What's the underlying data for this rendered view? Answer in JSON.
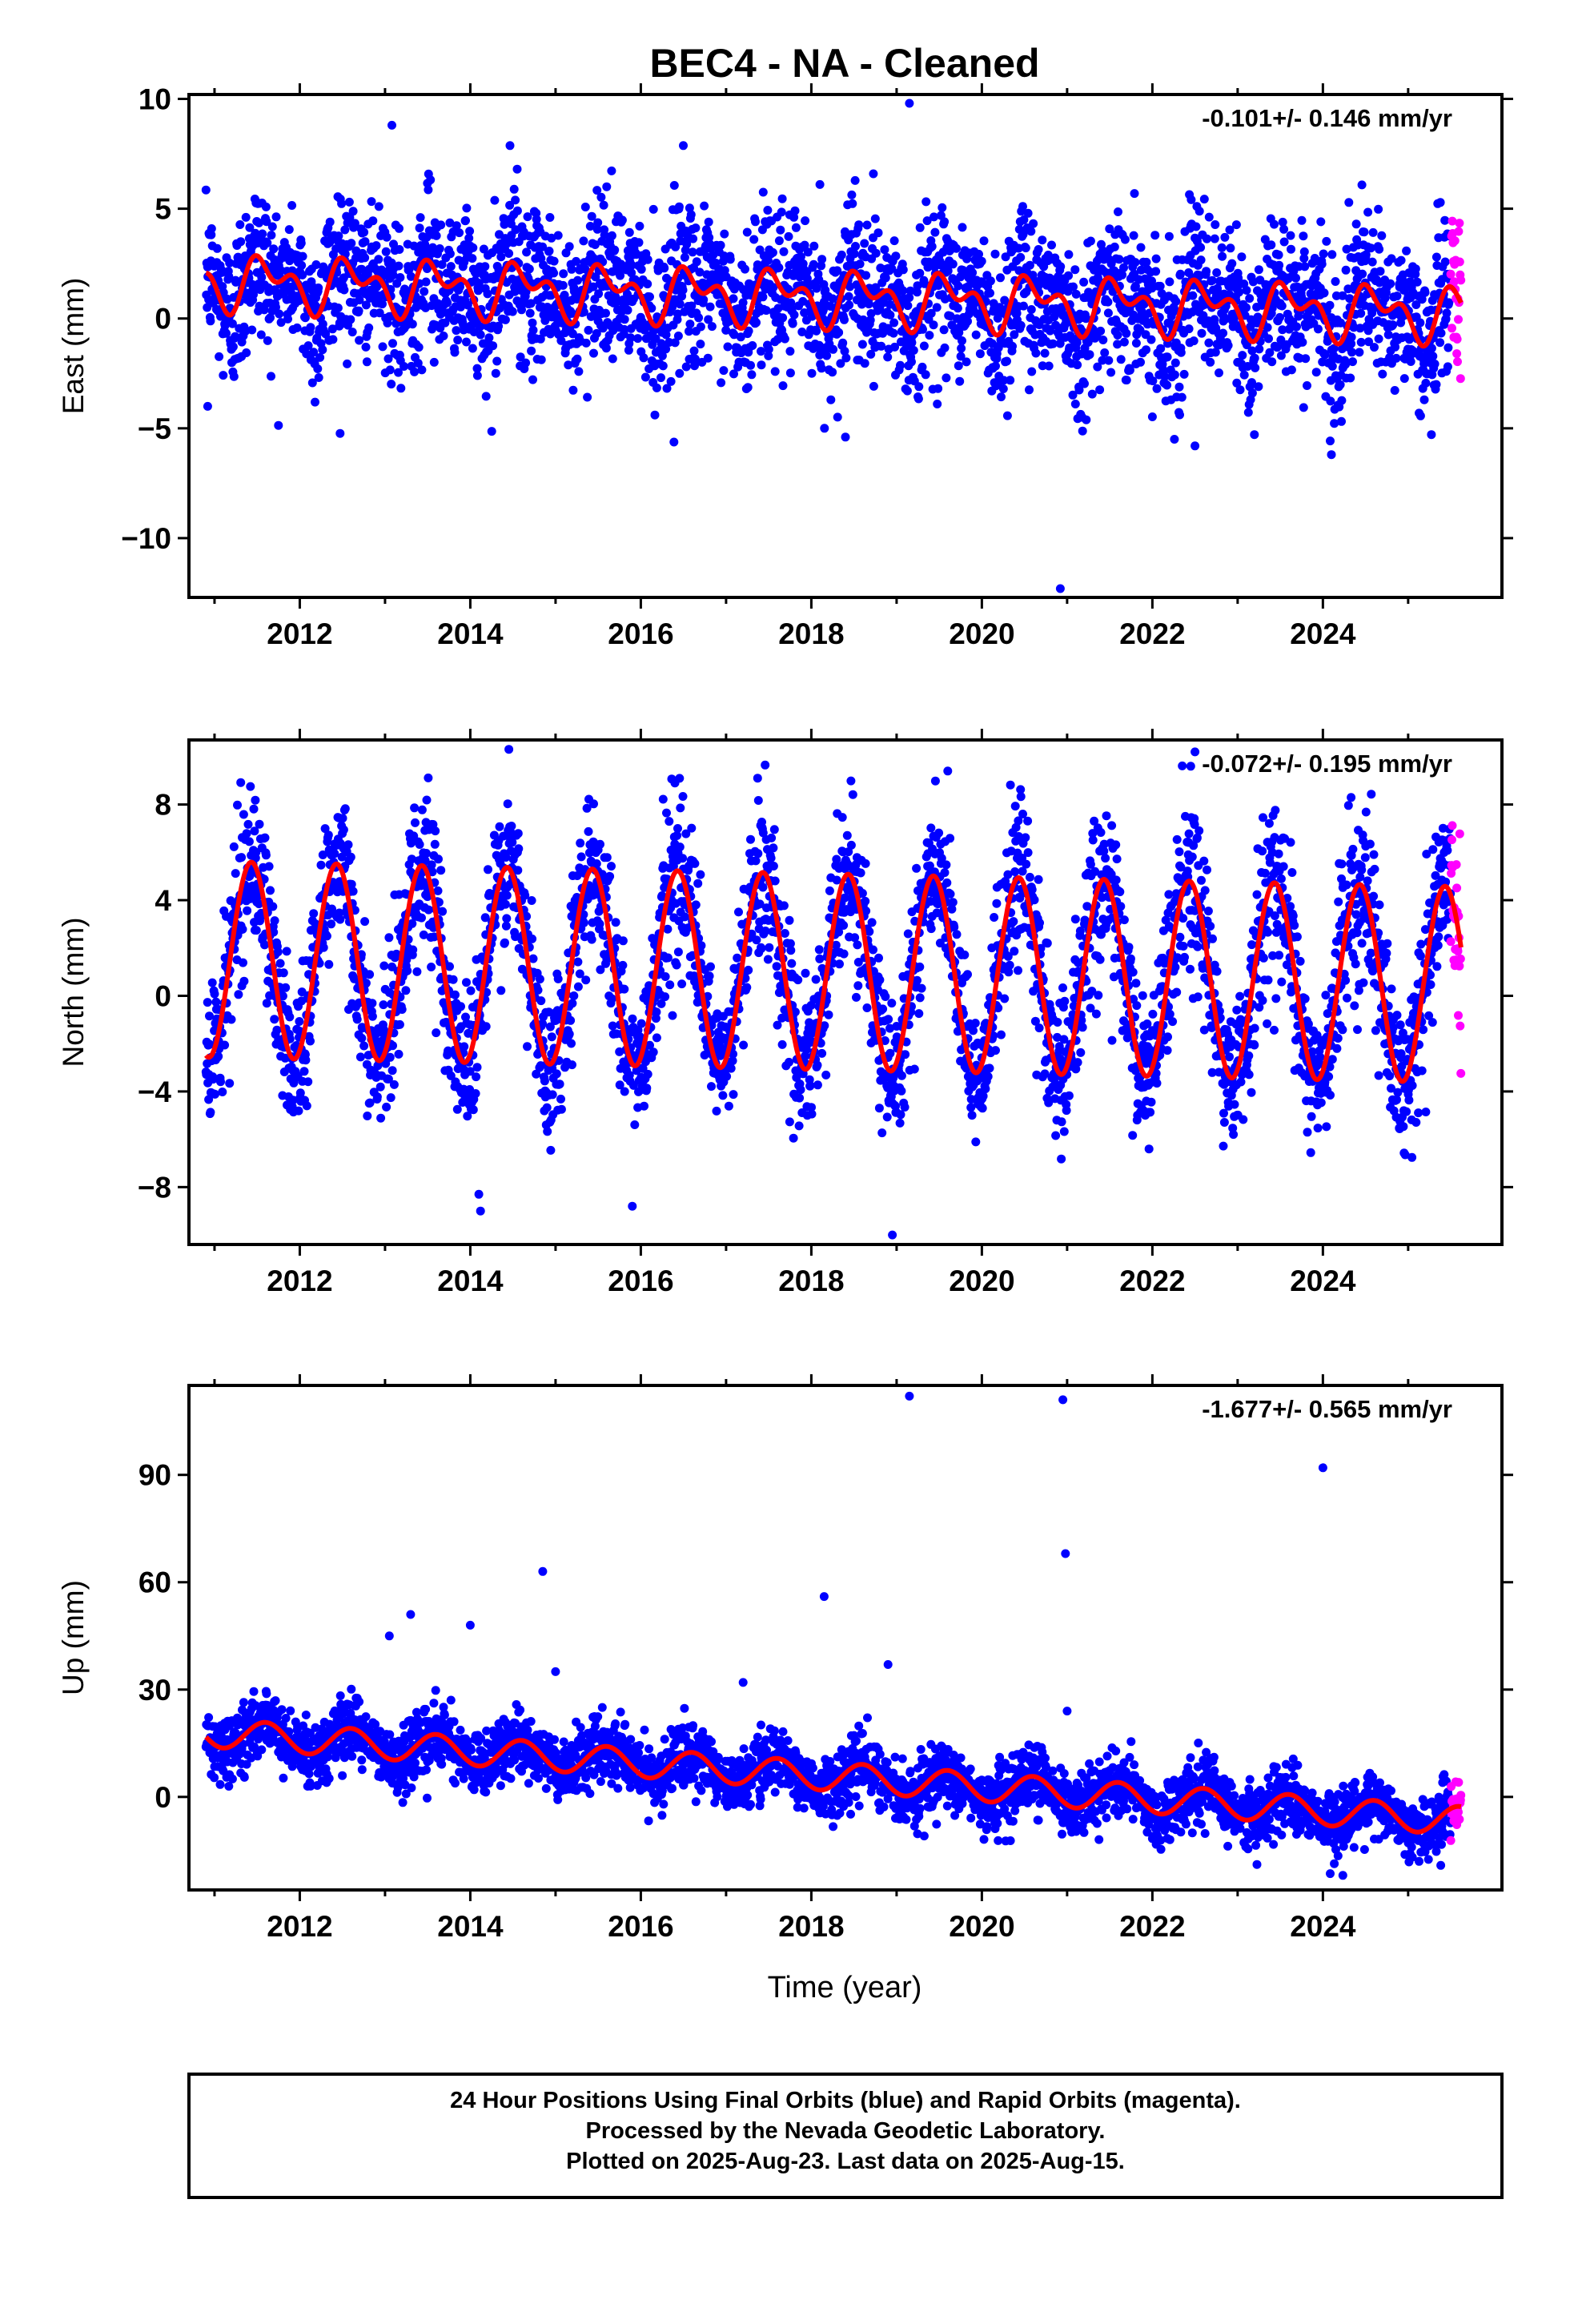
{
  "title": "BEC4  - NA - Cleaned",
  "xlabel": "Time (year)",
  "x_ticks": [
    "2012",
    "2014",
    "2016",
    "2018",
    "2020",
    "2022",
    "2024"
  ],
  "footer": [
    "24 Hour Positions Using Final Orbits (blue) and Rapid Orbits (magenta).",
    "Processed by the Nevada Geodetic Laboratory.",
    "Plotted on 2025-Aug-23. Last data on 2025-Aug-15."
  ],
  "colors": {
    "final": "#0000ff",
    "rapid": "#ff00ff",
    "model": "#ff0000",
    "frame": "#000000"
  },
  "chart_data": [
    {
      "type": "scatter",
      "name": "east",
      "ylabel": "East (mm)",
      "rate_text": "-0.101+/- 0.146 mm/yr",
      "xlim": [
        2010.7,
        2026.1
      ],
      "ylim": [
        -12.7,
        10.2
      ],
      "y_ticks": [
        10,
        5,
        0,
        -5,
        -10
      ],
      "y_tick_labels": [
        "10",
        "5",
        "0",
        "−5",
        "−10"
      ],
      "data_start": 2010.9,
      "data_end": 2025.62,
      "rapid_start": 2025.45,
      "model": {
        "offset": 0.95,
        "rate": -0.101,
        "ref_year": 2018.25,
        "annual_cos": 0.3,
        "annual_sin": 0.0,
        "semiannual_cos": 0.0,
        "semiannual_sin": 0.0,
        "amp_a": 0.9,
        "amp_b": 0.7
      },
      "noise_sd": 1.6,
      "outliers": [
        [
          2013.08,
          8.8
        ],
        [
          2019.15,
          9.8
        ],
        [
          2014.55,
          6.8
        ],
        [
          2018.1,
          6.1
        ],
        [
          2015.6,
          6.0
        ],
        [
          2020.92,
          -12.3
        ],
        [
          2018.4,
          -5.4
        ],
        [
          2024.1,
          -6.2
        ],
        [
          2022.5,
          -5.8
        ],
        [
          2010.92,
          -4.0
        ]
      ]
    },
    {
      "type": "scatter",
      "name": "north",
      "ylabel": "North (mm)",
      "rate_text": "-0.072+/- 0.195 mm/yr",
      "xlim": [
        2010.7,
        2026.1
      ],
      "ylim": [
        -10.4,
        10.7
      ],
      "y_ticks": [
        8,
        4,
        0,
        -4,
        -8
      ],
      "y_tick_labels": [
        "8",
        "4",
        "0",
        "−4",
        "−8"
      ],
      "data_start": 2010.9,
      "data_end": 2025.62,
      "rapid_start": 2025.45,
      "model": {
        "offset": 1.0,
        "rate": -0.072,
        "ref_year": 2018.25,
        "annual_cos": 4.2,
        "annual_sin": 0.0,
        "semiannual_cos": 0.0,
        "semiannual_sin": 0.0,
        "amp_a": 4.1,
        "amp_b": 0.0
      },
      "noise_sd": 1.5,
      "outliers": [
        [
          2022.5,
          10.2
        ],
        [
          2014.1,
          -8.3
        ],
        [
          2014.12,
          -9.0
        ],
        [
          2018.95,
          -10.0
        ],
        [
          2015.9,
          -8.8
        ],
        [
          2022.45,
          9.6
        ],
        [
          2016.4,
          8.9
        ],
        [
          2019.6,
          9.4
        ]
      ]
    },
    {
      "type": "scatter",
      "name": "up",
      "ylabel": "Up (mm)",
      "rate_text": "-1.677+/- 0.565 mm/yr",
      "xlim": [
        2010.7,
        2026.1
      ],
      "ylim": [
        -26,
        115
      ],
      "y_ticks": [
        90,
        60,
        30,
        0
      ],
      "y_tick_labels": [
        "90",
        "60",
        "30",
        "0"
      ],
      "data_start": 2010.9,
      "data_end": 2025.62,
      "rapid_start": 2025.45,
      "model": {
        "offset": 18.0,
        "rate": -1.677,
        "ref_year": 2010.9,
        "annual_cos": 4.0,
        "annual_sin": 0.0,
        "semiannual_cos": 0.0,
        "semiannual_sin": 0.0,
        "amp_a": 4.0,
        "amp_b": 0.0
      },
      "noise_sd": 4.0,
      "outliers": [
        [
          2019.15,
          112
        ],
        [
          2020.95,
          111
        ],
        [
          2024.0,
          92
        ],
        [
          2020.98,
          68
        ],
        [
          2014.85,
          63
        ],
        [
          2018.15,
          56
        ],
        [
          2013.3,
          51
        ],
        [
          2013.05,
          45
        ],
        [
          2014.0,
          48
        ],
        [
          2018.9,
          37
        ],
        [
          2017.2,
          32
        ],
        [
          2015.0,
          35
        ],
        [
          2021.0,
          24
        ]
      ]
    }
  ]
}
